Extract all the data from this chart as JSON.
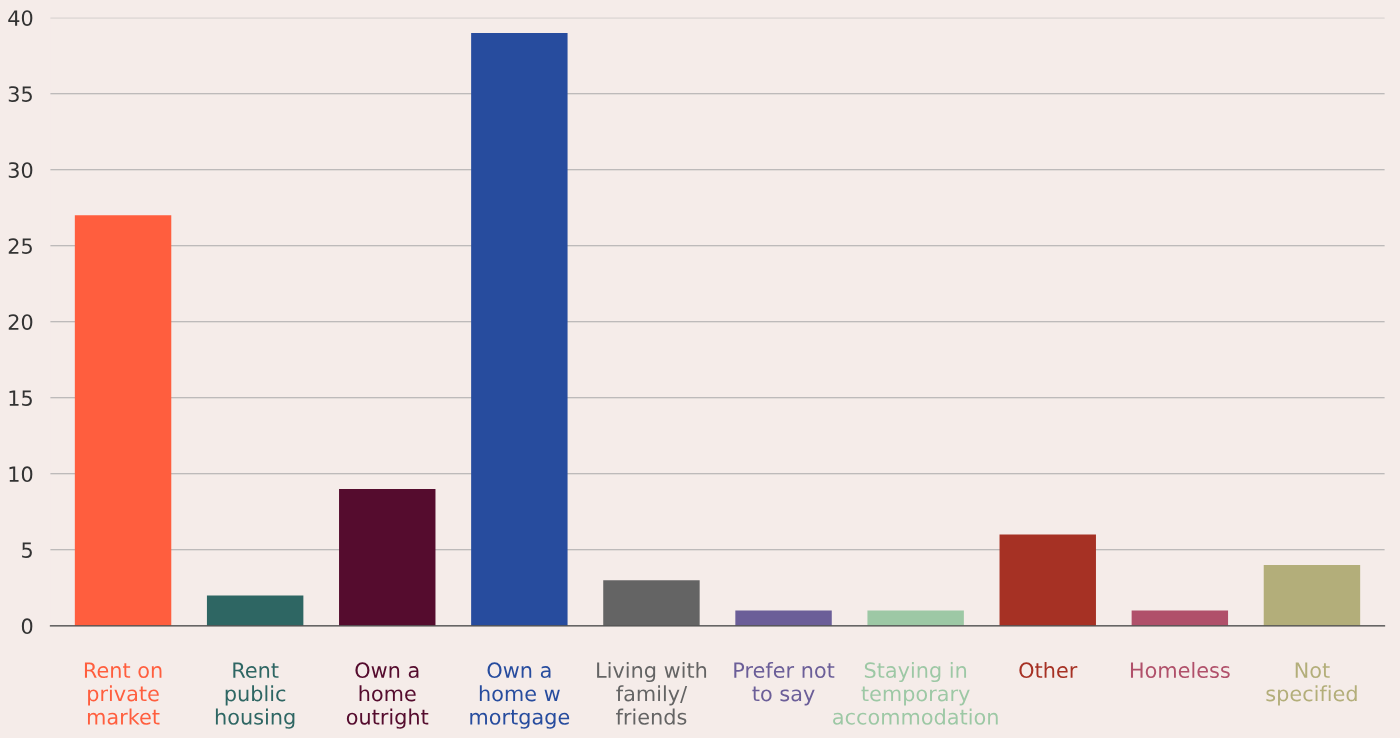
{
  "chart_data": {
    "type": "bar",
    "categories": [
      "Rent on\nprivate\nmarket",
      "Rent\npublic\nhousing",
      "Own a\nhome\noutright",
      "Own a\nhome w\nmortgage",
      "Living with\nfamily/\nfriends",
      "Prefer not\nto say",
      "Staying in\ntemporary\naccommodation",
      "Other",
      "Homeless",
      "Not\nspecified"
    ],
    "values": [
      27,
      2,
      9,
      39,
      3,
      1,
      1,
      6,
      1,
      4
    ],
    "colors": [
      "#ff5e3e",
      "#2e6663",
      "#550c2e",
      "#274c9e",
      "#646464",
      "#6b5e98",
      "#9dc8a5",
      "#a63124",
      "#b0506a",
      "#b3ae7a"
    ],
    "ylim": [
      0,
      40
    ],
    "yticks": [
      0,
      5,
      10,
      15,
      20,
      25,
      30,
      35,
      40
    ],
    "grid": "y"
  }
}
